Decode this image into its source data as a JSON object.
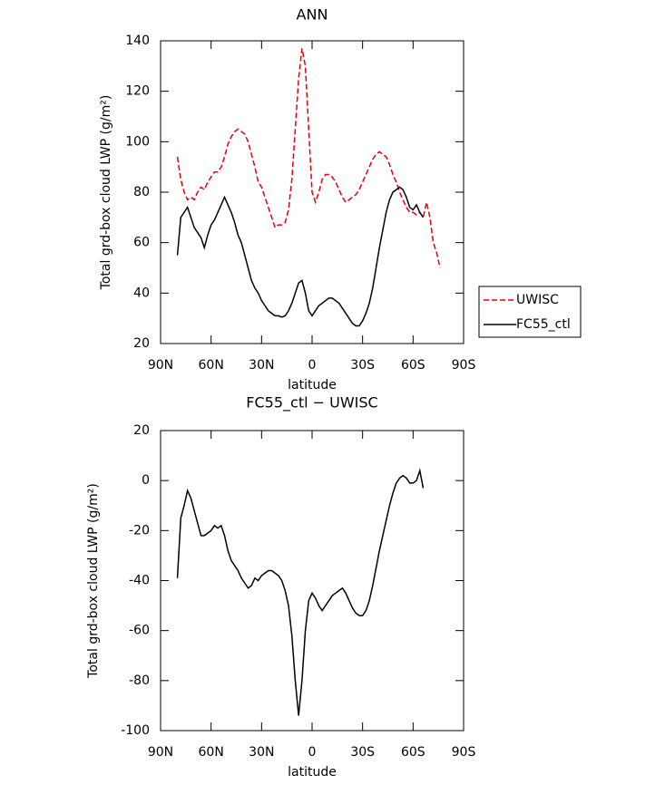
{
  "chart_data": [
    {
      "type": "line",
      "title": "ANN",
      "xlabel": "latitude",
      "ylabel": "Total grd-box cloud LWP (g/m²)",
      "x": [
        80,
        78,
        76,
        74,
        72,
        70,
        68,
        66,
        64,
        62,
        60,
        58,
        56,
        54,
        52,
        50,
        48,
        46,
        44,
        42,
        40,
        38,
        36,
        34,
        32,
        30,
        28,
        26,
        24,
        22,
        20,
        18,
        16,
        14,
        12,
        10,
        8,
        6,
        4,
        2,
        0,
        -2,
        -4,
        -6,
        -8,
        -10,
        -12,
        -14,
        -16,
        -18,
        -20,
        -22,
        -24,
        -26,
        -28,
        -30,
        -32,
        -34,
        -36,
        -38,
        -40,
        -42,
        -44,
        -46,
        -48,
        -50,
        -52,
        -54,
        -56,
        -58,
        -60,
        -62,
        -64,
        -66,
        -68,
        -70,
        -72,
        -74,
        -76
      ],
      "series": [
        {
          "name": "UWISC",
          "color": "#e3000f",
          "dash": true,
          "values": [
            94,
            85,
            80,
            77,
            78,
            77,
            80,
            82,
            81,
            84,
            86,
            88,
            88,
            90,
            94,
            99,
            102,
            104,
            105,
            104,
            103,
            100,
            95,
            90,
            84,
            82,
            78,
            74,
            70,
            66,
            67,
            67,
            68,
            73,
            85,
            105,
            125,
            137,
            130,
            105,
            80,
            76,
            80,
            85,
            87,
            87,
            86,
            84,
            81,
            78,
            76,
            77,
            78,
            79,
            81,
            84,
            87,
            90,
            93,
            95,
            96,
            95,
            94,
            91,
            87,
            84,
            80,
            77,
            74,
            72,
            72,
            71,
            72,
            70,
            76,
            70,
            60,
            56,
            50
          ]
        },
        {
          "name": "FC55_ctl",
          "color": "#000000",
          "dash": false,
          "values": [
            55,
            70,
            72,
            74,
            70,
            66,
            64,
            62,
            58,
            63,
            67,
            69,
            72,
            75,
            78,
            75,
            72,
            68,
            63,
            60,
            55,
            50,
            45,
            42,
            40,
            37,
            35,
            33,
            32,
            31,
            31,
            30.5,
            31,
            33,
            36,
            40,
            44,
            45,
            40,
            33,
            31,
            33,
            35,
            36,
            37,
            38,
            38,
            37,
            36,
            34,
            32,
            30,
            28,
            27,
            27,
            29,
            32,
            36,
            42,
            50,
            58,
            65,
            72,
            77,
            80,
            81,
            82,
            81,
            78,
            74,
            73,
            75,
            72,
            70,
            null,
            null,
            null,
            null,
            null
          ]
        }
      ],
      "xlim": [
        90,
        -90
      ],
      "xticks": [
        {
          "value": 90,
          "label": "90N"
        },
        {
          "value": 60,
          "label": "60N"
        },
        {
          "value": 30,
          "label": "30N"
        },
        0,
        {
          "value": -30,
          "label": "30S"
        },
        {
          "value": -60,
          "label": "60S"
        },
        {
          "value": -90,
          "label": "90S"
        }
      ],
      "ylim": [
        20,
        140
      ],
      "yticks": [
        20,
        40,
        60,
        80,
        100,
        120,
        140
      ],
      "legend": "outside-right"
    },
    {
      "type": "line",
      "title": "FC55_ctl − UWISC",
      "xlabel": "latitude",
      "ylabel": "Total grd-box cloud LWP (g/m²)",
      "x": [
        80,
        78,
        76,
        74,
        72,
        70,
        68,
        66,
        64,
        62,
        60,
        58,
        56,
        54,
        52,
        50,
        48,
        46,
        44,
        42,
        40,
        38,
        36,
        34,
        32,
        30,
        28,
        26,
        24,
        22,
        20,
        18,
        16,
        14,
        12,
        10,
        8,
        6,
        4,
        2,
        0,
        -2,
        -4,
        -6,
        -8,
        -10,
        -12,
        -14,
        -16,
        -18,
        -20,
        -22,
        -24,
        -26,
        -28,
        -30,
        -32,
        -34,
        -36,
        -38,
        -40,
        -42,
        -44,
        -46,
        -48,
        -50,
        -52,
        -54,
        -56,
        -58,
        -60,
        -62,
        -64,
        -66
      ],
      "series": [
        {
          "color": "#000000",
          "dash": false,
          "values": [
            -39,
            -15,
            -10,
            -4,
            -7,
            -12,
            -17,
            -22,
            -22,
            -21,
            -20,
            -18,
            -19,
            -18,
            -22,
            -28,
            -32,
            -34,
            -36,
            -39,
            -41,
            -43,
            -42,
            -39,
            -40,
            -38,
            -37,
            -36,
            -36,
            -37,
            -38,
            -40,
            -44,
            -50,
            -62,
            -80,
            -94,
            -80,
            -60,
            -48,
            -45,
            -47,
            -50,
            -52,
            -50,
            -48,
            -46,
            -45,
            -44,
            -43,
            -45,
            -48,
            -51,
            -53,
            -54,
            -54,
            -52,
            -48,
            -42,
            -35,
            -28,
            -22,
            -16,
            -10,
            -5,
            -1,
            1,
            2,
            1,
            -1,
            -1,
            0,
            4,
            -3
          ]
        }
      ],
      "xlim": [
        90,
        -90
      ],
      "xticks": [
        {
          "value": 90,
          "label": "90N"
        },
        {
          "value": 60,
          "label": "60N"
        },
        {
          "value": 30,
          "label": "30N"
        },
        0,
        {
          "value": -30,
          "label": "30S"
        },
        {
          "value": -60,
          "label": "60S"
        },
        {
          "value": -90,
          "label": "90S"
        }
      ],
      "ylim": [
        -100,
        20
      ],
      "yticks": [
        -100,
        -80,
        -60,
        -40,
        -20,
        0,
        20
      ]
    }
  ]
}
